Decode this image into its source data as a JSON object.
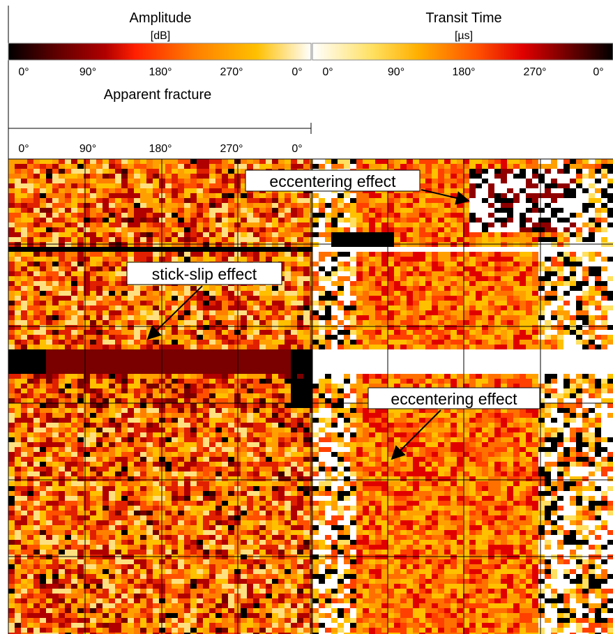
{
  "chart_data": [
    {
      "type": "heatmap",
      "panel": "amplitude",
      "title": "Amplitude",
      "unit": "[dB]",
      "colorscale": [
        "#000000",
        "#5a0000",
        "#b00000",
        "#ff2000",
        "#ff8000",
        "#ffc000",
        "#ffffff"
      ],
      "azimuth_ticks": [
        "0°",
        "90°",
        "180°",
        "270°",
        "0°"
      ],
      "azimuth_range_deg": [
        0,
        360
      ],
      "grid": true
    },
    {
      "type": "heatmap",
      "panel": "transit_time",
      "title": "Transit Time",
      "unit": "[µs]",
      "colorscale": [
        "#ffffff",
        "#ffe060",
        "#ffb000",
        "#ff5000",
        "#e00000",
        "#700000",
        "#000000"
      ],
      "azimuth_ticks": [
        "0°",
        "90°",
        "180°",
        "270°",
        "0°"
      ],
      "azimuth_range_deg": [
        0,
        360
      ],
      "grid": true
    }
  ],
  "apparent_fracture": {
    "label": "Apparent fracture",
    "azimuth_ticks": [
      "0°",
      "90°",
      "180°",
      "270°",
      "0°"
    ]
  },
  "annotations": [
    {
      "text": "eccentering effect"
    },
    {
      "text": "stick-slip effect"
    },
    {
      "text": "eccentering effect"
    }
  ],
  "colors": {
    "grid": "#000000",
    "annotation_box": "#ffffff",
    "arrow": "#000000"
  }
}
